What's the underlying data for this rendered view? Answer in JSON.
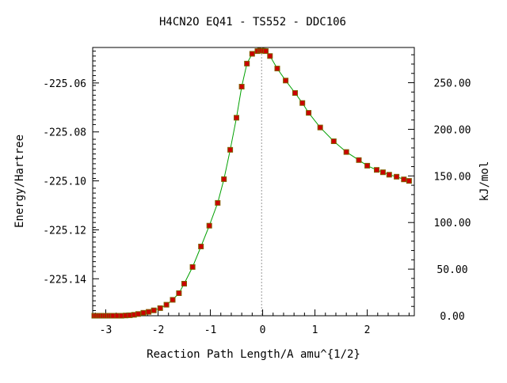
{
  "chart_data": {
    "type": "line",
    "title": "H4CN2O   EQ41 - TS552 - DDC106",
    "xlabel": "Reaction Path Length/A amu^{1/2}",
    "ylabel": "Energy/Hartree",
    "y2label": "kJ/mol",
    "xlim": [
      -3.25,
      2.9
    ],
    "ylim": [
      -225.1551,
      -225.0455
    ],
    "y2lim": [
      0,
      287.8
    ],
    "xticks": [
      {
        "value": -3,
        "label": "-3"
      },
      {
        "value": -2,
        "label": "-2"
      },
      {
        "value": -1,
        "label": "-1"
      },
      {
        "value": 0,
        "label": "0"
      },
      {
        "value": 1,
        "label": "1"
      },
      {
        "value": 2,
        "label": "2"
      }
    ],
    "yticks": [
      {
        "value": -225.06,
        "label": "-225.06"
      },
      {
        "value": -225.08,
        "label": "-225.08"
      },
      {
        "value": -225.1,
        "label": "-225.10"
      },
      {
        "value": -225.12,
        "label": "-225.12"
      },
      {
        "value": -225.14,
        "label": "-225.14"
      }
    ],
    "y2ticks": [
      {
        "value": 0,
        "label": "0.00"
      },
      {
        "value": 50,
        "label": "50.00"
      },
      {
        "value": 100,
        "label": "100.00"
      },
      {
        "value": 150,
        "label": "150.00"
      },
      {
        "value": 200,
        "label": "200.00"
      },
      {
        "value": 250,
        "label": "250.00"
      }
    ],
    "ts_marker_x": -0.02,
    "line_color": "#00a000",
    "marker_color": "#cc0000",
    "marker_outline_color": "#806000",
    "ts_line_color": "#999999",
    "series": [
      {
        "x": [
          -3.22,
          -3.18,
          -3.14,
          -3.1,
          -3.06,
          -3.02,
          -2.98,
          -2.94,
          -2.9,
          -2.86,
          -2.78,
          -2.7,
          -2.62,
          -2.54,
          -2.46,
          -2.38,
          -2.28,
          -2.18,
          -2.08,
          -1.96,
          -1.84,
          -1.72,
          -1.6,
          -1.5,
          -1.34,
          -1.18,
          -1.02,
          -0.86,
          -0.74,
          -0.62,
          -0.5,
          -0.4,
          -0.3,
          -0.2,
          -0.1,
          -0.05,
          -0.02,
          0.02,
          0.06,
          0.14,
          0.28,
          0.44,
          0.62,
          0.76,
          0.88,
          1.1,
          1.36,
          1.6,
          1.84,
          2.0,
          2.18,
          2.3,
          2.42,
          2.56,
          2.7,
          2.8
        ],
        "y": [
          -225.1551,
          -225.1551,
          -225.1551,
          -225.1551,
          -225.1551,
          -225.1551,
          -225.1551,
          -225.1551,
          -225.1551,
          -225.1551,
          -225.1551,
          -225.1551,
          -225.155,
          -225.1549,
          -225.1547,
          -225.1544,
          -225.1539,
          -225.1535,
          -225.1529,
          -225.152,
          -225.1506,
          -225.1486,
          -225.1459,
          -225.142,
          -225.1352,
          -225.1268,
          -225.1183,
          -225.109,
          -225.0993,
          -225.0873,
          -225.0742,
          -225.0615,
          -225.0521,
          -225.0481,
          -225.047,
          -225.0468,
          -225.0468,
          -225.0469,
          -225.047,
          -225.049,
          -225.0541,
          -225.059,
          -225.0641,
          -225.0682,
          -225.0722,
          -225.0782,
          -225.0838,
          -225.0882,
          -225.0915,
          -225.0938,
          -225.0955,
          -225.0965,
          -225.0975,
          -225.0983,
          -225.0994,
          -225.1
        ]
      }
    ]
  }
}
